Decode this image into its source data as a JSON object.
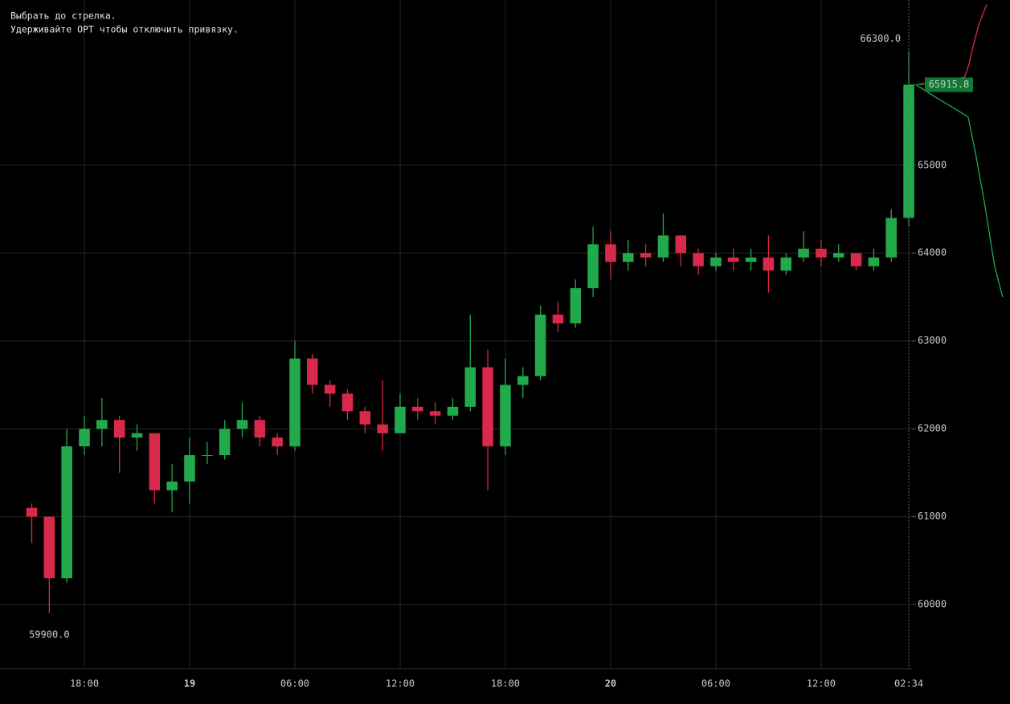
{
  "hint": [
    "Выбрать до стрелка.",
    "Удерживайте OPT чтобы отключить привязку."
  ],
  "chart_data": {
    "type": "candlestick",
    "x": [
      15,
      16,
      17,
      18,
      19,
      20,
      21,
      22,
      23,
      24,
      25,
      26,
      27,
      28,
      29,
      30,
      31,
      32,
      33,
      34,
      35,
      36,
      37,
      38,
      39,
      40,
      41,
      42,
      43,
      44,
      45,
      46,
      47,
      48,
      49,
      50,
      51,
      52,
      53,
      54,
      55,
      56,
      57,
      58,
      59,
      60,
      61,
      62,
      63,
      64,
      65
    ],
    "open": [
      61100,
      61000,
      60300,
      61800,
      62000,
      62100,
      61900,
      61950,
      61300,
      61400,
      61700,
      61700,
      62000,
      62100,
      61900,
      61800,
      62800,
      62500,
      62400,
      62200,
      62050,
      61950,
      62250,
      62200,
      62150,
      62250,
      62700,
      61800,
      62500,
      62600,
      63300,
      63200,
      63600,
      64100,
      63900,
      64000,
      63950,
      64200,
      64000,
      63850,
      63950,
      63900,
      63950,
      63800,
      63950,
      64050,
      63950,
      64000,
      63850,
      63950,
      64400
    ],
    "high": [
      61150,
      61000,
      62000,
      62150,
      62350,
      62150,
      62050,
      61950,
      61600,
      61900,
      61850,
      62100,
      62300,
      62150,
      61950,
      63000,
      62850,
      62550,
      62450,
      62250,
      62550,
      62400,
      62350,
      62300,
      62350,
      63300,
      62900,
      62800,
      62700,
      63400,
      63450,
      63700,
      64300,
      64250,
      64150,
      64100,
      64450,
      64200,
      64050,
      64000,
      64050,
      64050,
      64200,
      64000,
      64250,
      64150,
      64100,
      64000,
      64050,
      64500,
      66300
    ],
    "low": [
      60700,
      59900,
      60250,
      61700,
      61800,
      61500,
      61750,
      61150,
      61050,
      61150,
      61600,
      61650,
      61900,
      61800,
      61700,
      61750,
      62400,
      62250,
      62100,
      61950,
      61750,
      61950,
      62100,
      62050,
      62100,
      62200,
      61300,
      61700,
      62350,
      62550,
      63100,
      63150,
      63500,
      63700,
      63800,
      63850,
      63900,
      63850,
      63750,
      63800,
      63800,
      63800,
      63550,
      63750,
      63900,
      63850,
      63900,
      63800,
      63800,
      63900,
      64300
    ],
    "close": [
      61000,
      60300,
      61800,
      62000,
      62100,
      61900,
      61950,
      61300,
      61400,
      61700,
      61700,
      62000,
      62100,
      61900,
      61800,
      62800,
      62500,
      62400,
      62200,
      62050,
      61950,
      62250,
      62200,
      62150,
      62250,
      62700,
      61800,
      62500,
      62600,
      63300,
      63200,
      63600,
      64100,
      63900,
      64000,
      63950,
      64200,
      64000,
      63850,
      63950,
      63900,
      63950,
      63800,
      63950,
      64050,
      63950,
      64000,
      63850,
      63950,
      64400,
      65915.8
    ],
    "up_color": "#22a94b",
    "down_color": "#d9294a",
    "xlim": [
      13.19,
      65.18
    ],
    "xticks": [
      {
        "value": 18,
        "label": "18:00"
      },
      {
        "value": 24,
        "label": "19"
      },
      {
        "value": 30,
        "label": "06:00"
      },
      {
        "value": 36,
        "label": "12:00"
      },
      {
        "value": 42,
        "label": "18:00"
      },
      {
        "value": 48,
        "label": "20"
      },
      {
        "value": 54,
        "label": "06:00"
      },
      {
        "value": 60,
        "label": "12:00"
      }
    ],
    "ylim": [
      59270,
      66880
    ],
    "yticks": [
      60000,
      61000,
      62000,
      63000,
      64000,
      65000
    ],
    "grid": true,
    "high_label": {
      "value": 66300,
      "label": "66300.0"
    },
    "low_label": {
      "value": 59900,
      "label": "59900.0"
    },
    "last_price": 65915.8,
    "crosshair_label": "02:34",
    "depth": {
      "asks": {
        "color": "#e0283f",
        "prices": [
          65916,
          66000,
          66150,
          66330,
          66600,
          66830
        ],
        "cumulative": [
          0,
          55,
          60,
          64,
          71,
          80
        ]
      },
      "bids": {
        "color": "#22a94b",
        "prices": [
          65916,
          65800,
          65550,
          65100,
          64600,
          63850,
          63500
        ],
        "cumulative": [
          0,
          18,
          59,
          68,
          77,
          89,
          98
        ]
      }
    }
  }
}
